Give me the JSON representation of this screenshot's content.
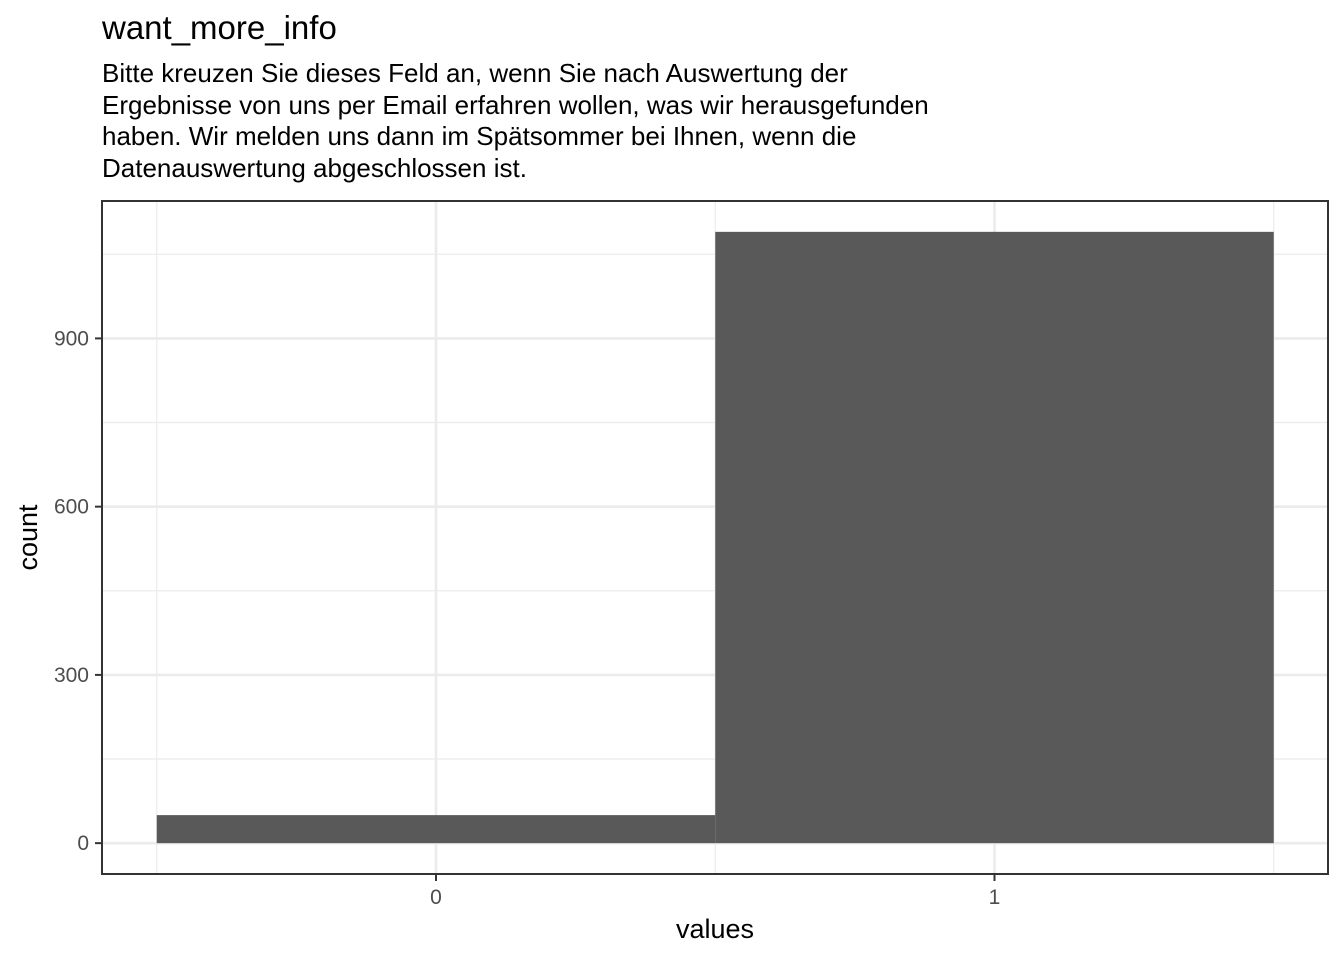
{
  "chart_data": {
    "type": "bar",
    "title": "want_more_info",
    "subtitle_lines": [
      "Bitte kreuzen Sie dieses Feld an, wenn Sie nach Auswertung der",
      "Ergebnisse von uns per Email erfahren wollen, was wir herausgefunden",
      "haben. Wir melden uns dann im Spätsommer bei Ihnen, wenn die",
      "Datenauswertung abgeschlossen ist."
    ],
    "xlabel": "values",
    "ylabel": "count",
    "categories": [
      "0",
      "1"
    ],
    "values": [
      50,
      1090
    ],
    "ylim": [
      -55,
      1145
    ],
    "xlim": [
      -0.6,
      1.6
    ],
    "yticks": [
      0,
      300,
      600,
      900
    ],
    "ytick_labels": [
      "0",
      "300",
      "600",
      "900"
    ],
    "xticks": [
      0,
      1
    ],
    "xtick_labels": [
      "0",
      "1"
    ],
    "bar_color": "#595959",
    "grid": true,
    "legend": "none"
  }
}
